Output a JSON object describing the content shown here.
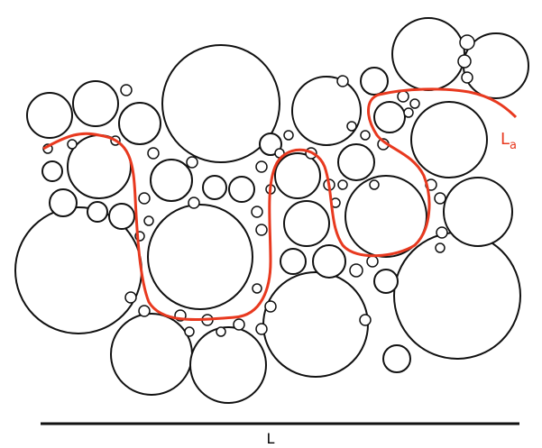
{
  "path_label": {
    "main": "L",
    "sub": "a"
  },
  "scale_label": "L"
}
